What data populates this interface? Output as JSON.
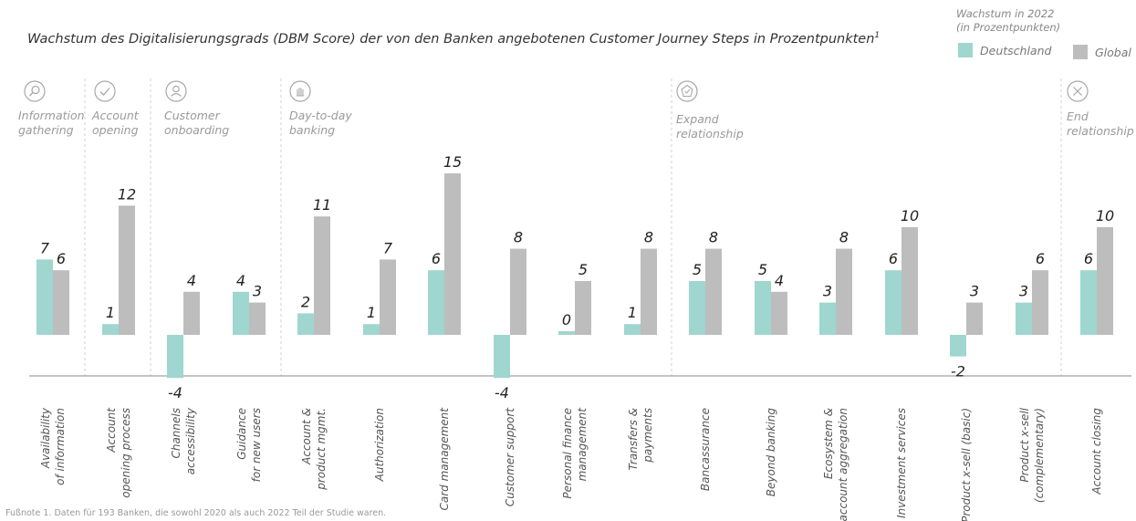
{
  "title": "Wachstum des Digitalisierungsgrads (DBM Score) der von den Banken angebotenen Customer Journey Steps in Prozentpunkten",
  "title_sup": "1",
  "legend": {
    "title_line1": "Wachstum in 2022",
    "title_line2": "(in Prozentpunkten)",
    "items": [
      {
        "label": "Deutschland",
        "color": "#9fd6cf"
      },
      {
        "label": "Global",
        "color": "#bdbdbd"
      }
    ]
  },
  "footnote": "Fußnote 1. Daten für 193 Banken, die sowohl 2020 als auch 2022 Teil der Studie waren.",
  "stages": [
    {
      "lines": [
        "Information",
        "gathering"
      ],
      "icon": "search-icon"
    },
    {
      "lines": [
        "Account",
        "opening"
      ],
      "icon": "check-icon"
    },
    {
      "lines": [
        "Customer",
        "onboarding"
      ],
      "icon": "user-icon"
    },
    {
      "lines": [
        "Day-to-day",
        "banking"
      ],
      "icon": "hand-icon"
    },
    {
      "lines": [
        "Expand",
        "relationship"
      ],
      "icon": "badge-icon"
    },
    {
      "lines": [
        "End",
        "relationship"
      ],
      "icon": "close-icon"
    }
  ],
  "chart_data": {
    "type": "bar",
    "categories": [
      [
        "Availability",
        "of information"
      ],
      [
        "Account",
        "opening process"
      ],
      [
        "Channels",
        "accessibility"
      ],
      [
        "Guidance",
        "for new users"
      ],
      [
        "Account &",
        "product mgmt."
      ],
      [
        "Authorization"
      ],
      [
        "Card management"
      ],
      [
        "Customer support"
      ],
      [
        "Personal finance",
        "management"
      ],
      [
        "Transfers &",
        "payments"
      ],
      [
        "Bancassurance"
      ],
      [
        "Beyond banking"
      ],
      [
        "Ecosystem &",
        "account aggregation"
      ],
      [
        "Investment services"
      ],
      [
        "Product x-sell (basic)"
      ],
      [
        "Product x-sell",
        "(complementary)"
      ],
      [
        "Account closing"
      ]
    ],
    "series": [
      {
        "name": "Deutschland",
        "color": "#9fd6cf",
        "values": [
          7,
          1,
          -4,
          4,
          2,
          1,
          6,
          -4,
          0,
          1,
          5,
          5,
          3,
          6,
          -2,
          3,
          6
        ]
      },
      {
        "name": "Global",
        "color": "#bdbdbd",
        "values": [
          6,
          12,
          4,
          3,
          11,
          7,
          15,
          8,
          5,
          8,
          8,
          4,
          8,
          10,
          3,
          6,
          10
        ]
      }
    ]
  }
}
